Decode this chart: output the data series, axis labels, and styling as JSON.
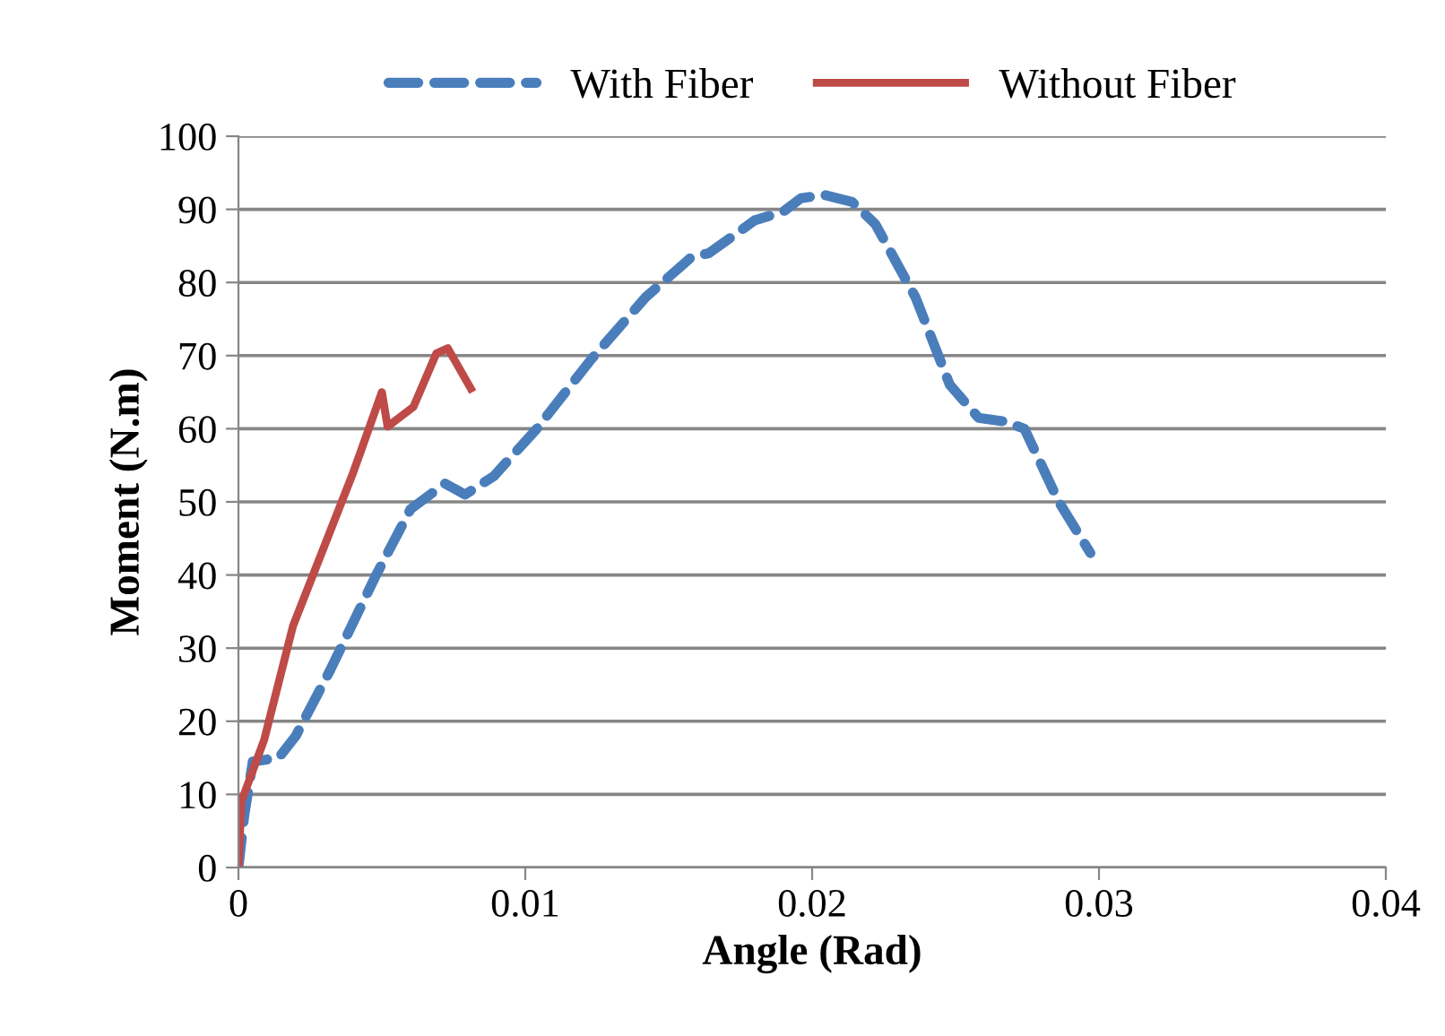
{
  "chart_data": {
    "type": "line",
    "xlabel": "Angle (Rad)",
    "ylabel": "Moment (N.m)",
    "xlim": [
      0,
      0.04
    ],
    "xticks": [
      {
        "value": 0,
        "label": "0"
      },
      0.01,
      0.02,
      0.03,
      0.04
    ],
    "ylim": [
      0,
      100
    ],
    "yticks": [
      0,
      10,
      20,
      30,
      40,
      50,
      60,
      70,
      80,
      90,
      100
    ],
    "grid": "y",
    "legend": "top",
    "marker": "none",
    "series": [
      {
        "name": "With Fiber",
        "color": "#4a7ebb",
        "line_style": "dashed",
        "x": [
          0,
          0.0002,
          0.0005,
          0.0014,
          0.002,
          0.0032,
          0.0048,
          0.006,
          0.0072,
          0.0079,
          0.0089,
          0.0104,
          0.0123,
          0.0142,
          0.0158,
          0.0164,
          0.018,
          0.019,
          0.0196,
          0.0204,
          0.0214,
          0.0222,
          0.0236,
          0.0248,
          0.0258,
          0.0267,
          0.0274,
          0.0286,
          0.0297
        ],
        "values": [
          0,
          7,
          14.5,
          15,
          18,
          27,
          40,
          49,
          52.5,
          51,
          53.5,
          60,
          69.5,
          78,
          83.5,
          84,
          88.5,
          89.7,
          91.5,
          92,
          91,
          88,
          78,
          66,
          61.5,
          61,
          60,
          50,
          43
        ]
      },
      {
        "name": "Without Fiber",
        "color": "#be4b48",
        "line_style": "solid",
        "x": [
          0,
          0.0001,
          0.0009,
          0.0019,
          0.004,
          0.005,
          0.0052,
          0.0061,
          0.0069,
          0.0073,
          0.0081
        ],
        "values": [
          0,
          9,
          17.5,
          33,
          54,
          65,
          60.3,
          63,
          70.3,
          71,
          65.5
        ]
      }
    ]
  }
}
